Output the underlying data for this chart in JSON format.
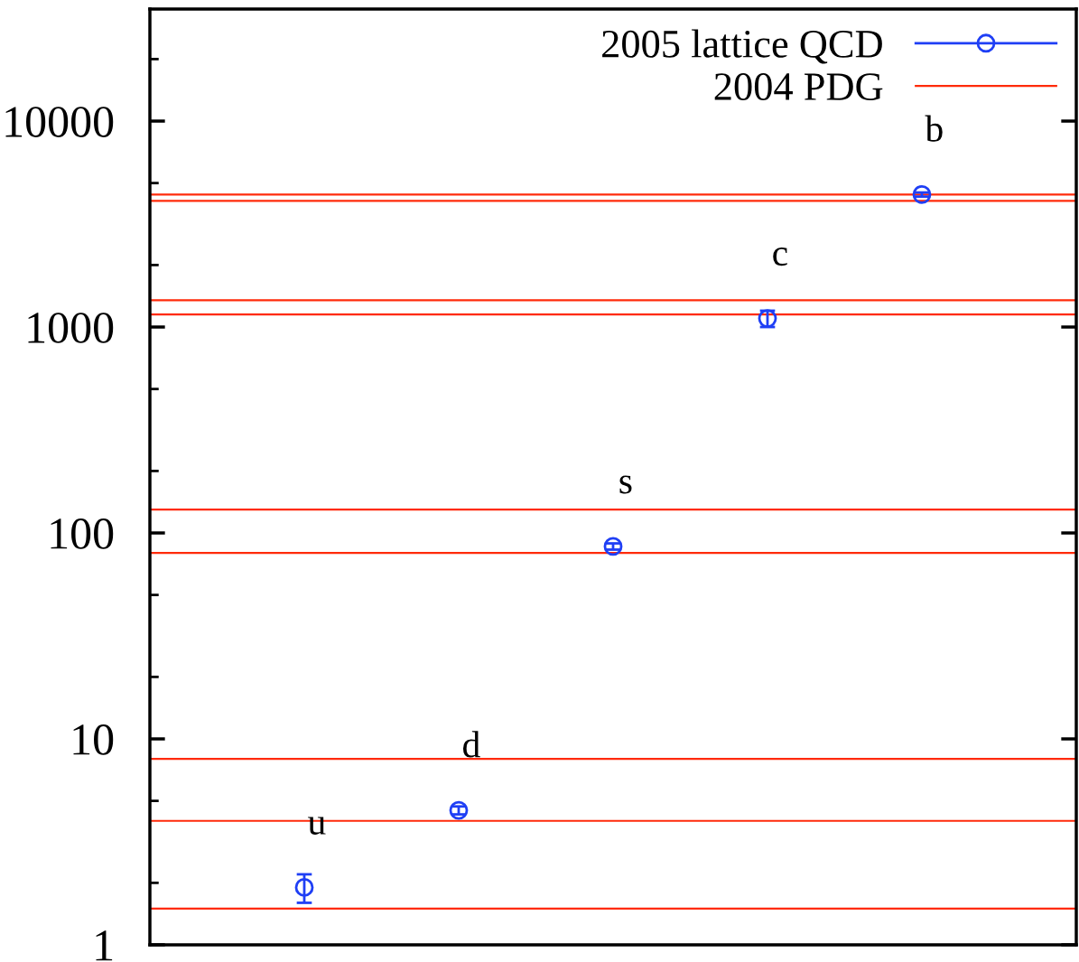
{
  "chart_data": {
    "type": "scatter",
    "categories": [
      null,
      null,
      null,
      null,
      null
    ],
    "series": [
      {
        "name": "2005 lattice QCD",
        "color": "#1f3ff5",
        "values": [
          1.9,
          4.5,
          86,
          1100,
          4400
        ],
        "errors": [
          [
            1.6,
            2.2
          ],
          [
            4.3,
            4.7
          ],
          [
            83,
            89
          ],
          [
            1000,
            1200
          ],
          [
            4300,
            4500
          ]
        ]
      }
    ],
    "log": "y",
    "ylim": [
      1,
      35000
    ],
    "yticks": [
      1,
      10,
      100,
      1000,
      10000
    ],
    "tick_labels": "y",
    "marker": "circle",
    "grid": false,
    "legend": "top right",
    "ref_lines": [
      {
        "axis": "y",
        "value": 1.5,
        "color": "#ff2a0a",
        "label": "2004 PDG"
      },
      {
        "axis": "y",
        "value": 4,
        "color": "#ff2a0a"
      },
      {
        "axis": "y",
        "value": 8,
        "color": "#ff2a0a"
      },
      {
        "axis": "y",
        "value": 80,
        "color": "#ff2a0a"
      },
      {
        "axis": "y",
        "value": 130,
        "color": "#ff2a0a"
      },
      {
        "axis": "y",
        "value": 1150,
        "color": "#ff2a0a"
      },
      {
        "axis": "y",
        "value": 1350,
        "color": "#ff2a0a"
      },
      {
        "axis": "y",
        "value": 4100,
        "color": "#ff2a0a"
      },
      {
        "axis": "y",
        "value": 4400,
        "color": "#ff2a0a"
      }
    ],
    "annotations": [
      "u",
      "d",
      "s",
      "c",
      "b"
    ]
  }
}
